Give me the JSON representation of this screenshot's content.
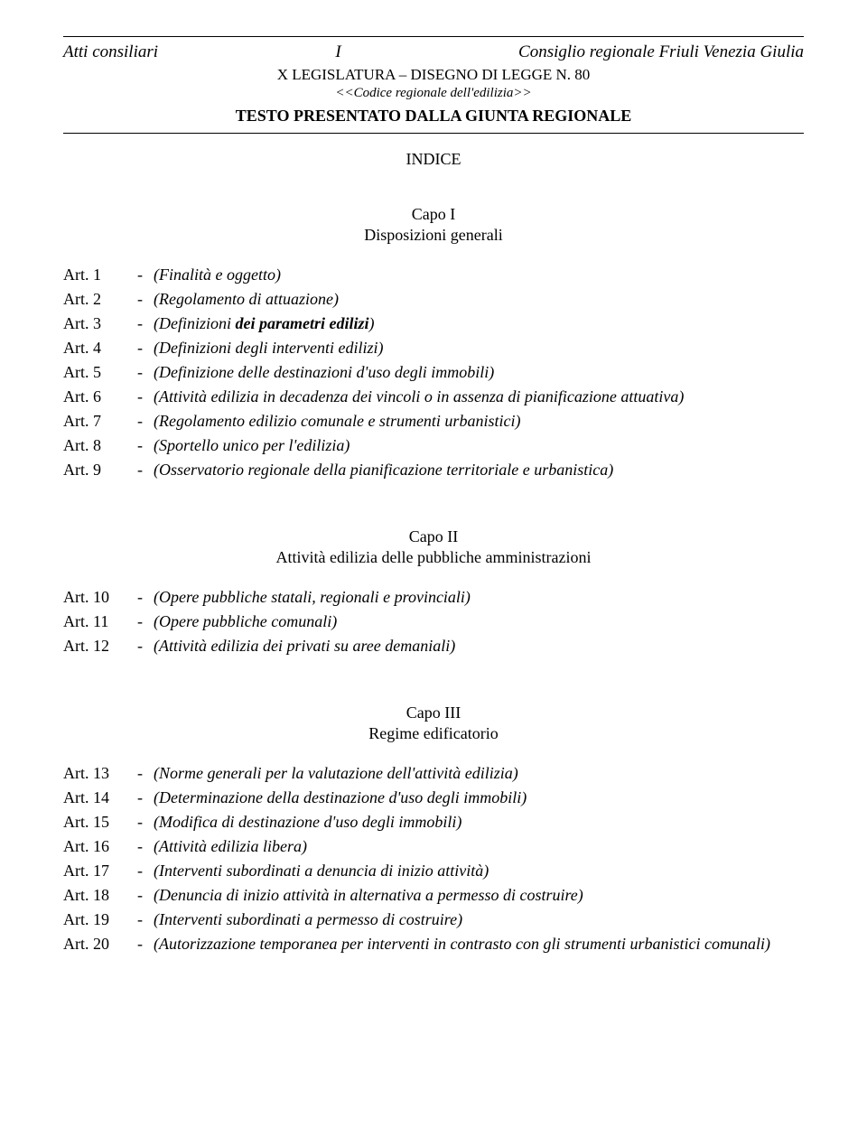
{
  "header": {
    "left": "Atti consiliari",
    "center": "I",
    "right": "Consiglio regionale Friuli Venezia Giulia",
    "sub1": "X LEGISLATURA – DISEGNO DI LEGGE N. 80",
    "sub2": "<<Codice regionale dell'edilizia>>",
    "testo": "TESTO PRESENTATO DALLA GIUNTA REGIONALE",
    "indice": "INDICE"
  },
  "capo1": {
    "title": "Capo I",
    "subtitle": "Disposizioni generali",
    "articles": [
      {
        "num": "Art. 1",
        "desc": "(Finalità e oggetto)"
      },
      {
        "num": "Art. 2",
        "desc": "(Regolamento di attuazione)"
      },
      {
        "num": "Art. 3",
        "desc_pre": "(Definizioni ",
        "desc_bold": "dei parametri edilizi",
        "desc_post": ")"
      },
      {
        "num": "Art. 4",
        "desc": "(Definizioni degli interventi edilizi)"
      },
      {
        "num": "Art. 5",
        "desc": "(Definizione delle destinazioni d'uso degli immobili)"
      },
      {
        "num": "Art. 6",
        "desc": "(Attività edilizia in decadenza dei vincoli o in assenza di pianificazione attuativa)"
      },
      {
        "num": "Art. 7",
        "desc": "(Regolamento edilizio comunale e strumenti urbanistici)"
      },
      {
        "num": "Art. 8",
        "desc": "(Sportello unico per l'edilizia)"
      },
      {
        "num": "Art. 9",
        "desc": "(Osservatorio regionale della pianificazione territoriale e urbanistica)"
      }
    ]
  },
  "capo2": {
    "title": "Capo II",
    "subtitle": "Attività edilizia delle pubbliche amministrazioni",
    "articles": [
      {
        "num": "Art. 10",
        "desc": "(Opere pubbliche statali, regionali e provinciali)"
      },
      {
        "num": "Art. 11",
        "desc": "(Opere pubbliche comunali)"
      },
      {
        "num": "Art. 12",
        "desc": "(Attività edilizia dei privati su aree demaniali)"
      }
    ]
  },
  "capo3": {
    "title": "Capo III",
    "subtitle": "Regime edificatorio",
    "articles": [
      {
        "num": "Art. 13",
        "desc": "(Norme generali per la valutazione dell'attività edilizia)"
      },
      {
        "num": "Art. 14",
        "desc": "(Determinazione della destinazione d'uso degli immobili)"
      },
      {
        "num": "Art. 15",
        "desc": "(Modifica di destinazione d'uso degli immobili)"
      },
      {
        "num": "Art. 16",
        "desc": "(Attività edilizia libera)"
      },
      {
        "num": "Art. 17",
        "desc": "(Interventi subordinati a denuncia di inizio attività)"
      },
      {
        "num": "Art. 18",
        "desc": "(Denuncia di inizio attività in alternativa a permesso di costruire)"
      },
      {
        "num": "Art. 19",
        "desc": "(Interventi subordinati a permesso di costruire)"
      },
      {
        "num": "Art. 20",
        "desc": "(Autorizzazione temporanea per interventi in contrasto con gli strumenti urbanistici comunali)"
      }
    ]
  },
  "dash": "-"
}
